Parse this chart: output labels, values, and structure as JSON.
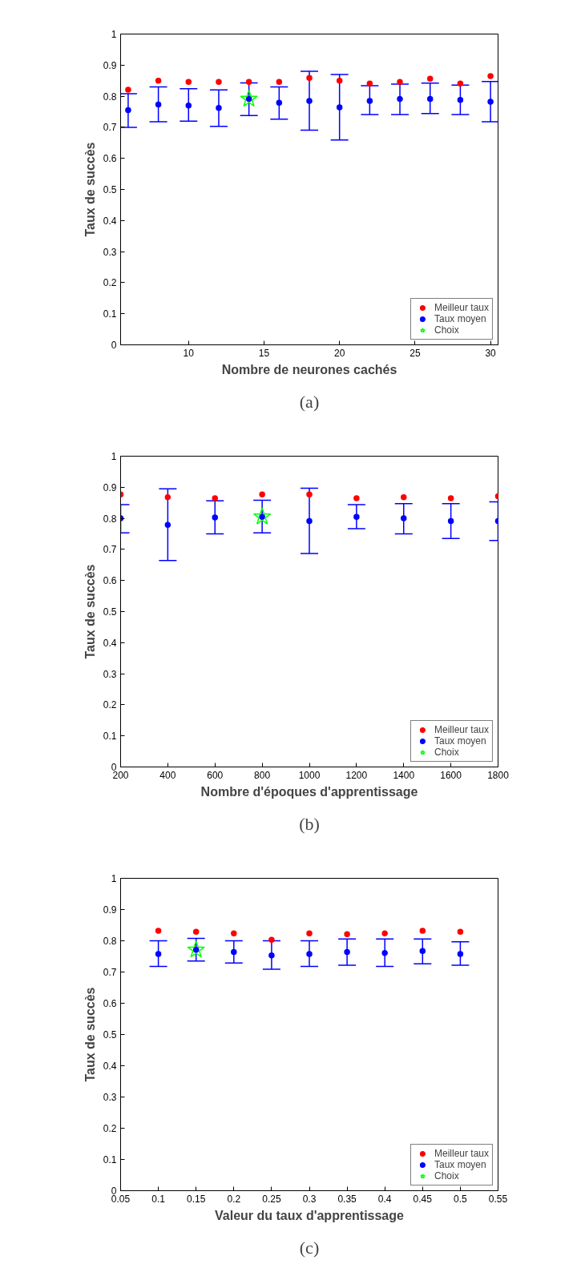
{
  "chart_data": [
    {
      "type": "scatter",
      "xlabel": "Nombre de neurones cachés",
      "ylabel": "Taux de succès",
      "annotations": [
        "(a)"
      ],
      "xlim": [
        5.5,
        30.5
      ],
      "xticks": [
        10,
        15,
        20,
        25,
        30
      ],
      "ylim": [
        0,
        1
      ],
      "yticks": [
        0,
        0.1,
        0.2,
        0.3,
        0.4,
        0.5,
        0.6,
        0.7,
        0.8,
        0.9,
        1
      ],
      "legend": "bottom right",
      "grid": false,
      "series": [
        {
          "name": "Meilleur taux",
          "color": "#ff0000",
          "marker": "circle",
          "x": [
            6,
            8,
            10,
            12,
            14,
            16,
            18,
            20,
            22,
            24,
            26,
            28,
            30
          ],
          "values": [
            0.821,
            0.85,
            0.846,
            0.846,
            0.846,
            0.846,
            0.859,
            0.85,
            0.841,
            0.846,
            0.856,
            0.841,
            0.865
          ]
        },
        {
          "name": "Taux moyen",
          "color": "#0000ff",
          "marker": "circle",
          "x": [
            6,
            8,
            10,
            12,
            14,
            16,
            18,
            20,
            22,
            24,
            26,
            28,
            30
          ],
          "values": [
            0.755,
            0.773,
            0.77,
            0.762,
            0.791,
            0.779,
            0.785,
            0.764,
            0.785,
            0.791,
            0.791,
            0.788,
            0.782
          ],
          "errors": [
            [
              0.7,
              0.808
            ],
            [
              0.718,
              0.83
            ],
            [
              0.72,
              0.824
            ],
            [
              0.703,
              0.82
            ],
            [
              0.738,
              0.843
            ],
            [
              0.726,
              0.83
            ],
            [
              0.691,
              0.88
            ],
            [
              0.659,
              0.87
            ],
            [
              0.741,
              0.834
            ],
            [
              0.741,
              0.839
            ],
            [
              0.744,
              0.842
            ],
            [
              0.741,
              0.836
            ],
            [
              0.718,
              0.847
            ]
          ]
        },
        {
          "name": "Choix",
          "color": "#00ff00",
          "marker": "star",
          "x": [
            14
          ],
          "values": [
            0.791
          ]
        }
      ]
    },
    {
      "type": "scatter",
      "xlabel": "Nombre d'époques d'apprentissage",
      "ylabel": "Taux de succès",
      "annotations": [
        "(b)"
      ],
      "xlim": [
        200,
        1800
      ],
      "xticks": [
        200,
        400,
        600,
        800,
        1000,
        1200,
        1400,
        1600,
        1800
      ],
      "ylim": [
        0,
        1
      ],
      "yticks": [
        0,
        0.1,
        0.2,
        0.3,
        0.4,
        0.5,
        0.6,
        0.7,
        0.8,
        0.9,
        1
      ],
      "legend": "bottom right",
      "grid": false,
      "series": [
        {
          "name": "Meilleur taux",
          "color": "#ff0000",
          "marker": "circle",
          "x": [
            200,
            400,
            600,
            800,
            1000,
            1200,
            1400,
            1600,
            1800
          ],
          "values": [
            0.877,
            0.868,
            0.865,
            0.877,
            0.877,
            0.865,
            0.868,
            0.865,
            0.871
          ]
        },
        {
          "name": "Taux moyen",
          "color": "#0000ff",
          "marker": "circle",
          "x": [
            200,
            400,
            600,
            800,
            1000,
            1200,
            1400,
            1600,
            1800
          ],
          "values": [
            0.8,
            0.779,
            0.803,
            0.805,
            0.791,
            0.805,
            0.8,
            0.791,
            0.791
          ],
          "errors": [
            [
              0.753,
              0.844
            ],
            [
              0.664,
              0.895
            ],
            [
              0.75,
              0.856
            ],
            [
              0.753,
              0.858
            ],
            [
              0.687,
              0.897
            ],
            [
              0.767,
              0.844
            ],
            [
              0.75,
              0.847
            ],
            [
              0.735,
              0.847
            ],
            [
              0.729,
              0.853
            ]
          ]
        },
        {
          "name": "Choix",
          "color": "#00ff00",
          "marker": "star",
          "x": [
            800
          ],
          "values": [
            0.805
          ]
        }
      ]
    },
    {
      "type": "scatter",
      "xlabel": "Valeur du taux d'apprentissage",
      "ylabel": "Taux de succès",
      "annotations": [
        "(c)"
      ],
      "xlim": [
        0.05,
        0.55
      ],
      "xticks": [
        0.05,
        0.1,
        0.15,
        0.2,
        0.25,
        0.3,
        0.35,
        0.4,
        0.45,
        0.5,
        0.55
      ],
      "ylim": [
        0,
        1
      ],
      "yticks": [
        0,
        0.1,
        0.2,
        0.3,
        0.4,
        0.5,
        0.6,
        0.7,
        0.8,
        0.9,
        1
      ],
      "legend": "bottom right",
      "grid": false,
      "series": [
        {
          "name": "Meilleur taux",
          "color": "#ff0000",
          "marker": "circle",
          "x": [
            0.1,
            0.15,
            0.2,
            0.25,
            0.3,
            0.35,
            0.4,
            0.45,
            0.5
          ],
          "values": [
            0.832,
            0.829,
            0.824,
            0.803,
            0.824,
            0.821,
            0.824,
            0.832,
            0.829
          ]
        },
        {
          "name": "Taux moyen",
          "color": "#0000ff",
          "marker": "circle",
          "x": [
            0.1,
            0.15,
            0.2,
            0.25,
            0.3,
            0.35,
            0.4,
            0.45,
            0.5
          ],
          "values": [
            0.758,
            0.771,
            0.764,
            0.753,
            0.758,
            0.764,
            0.761,
            0.767,
            0.758
          ],
          "errors": [
            [
              0.718,
              0.8
            ],
            [
              0.735,
              0.808
            ],
            [
              0.729,
              0.8
            ],
            [
              0.709,
              0.8
            ],
            [
              0.718,
              0.8
            ],
            [
              0.722,
              0.806
            ],
            [
              0.718,
              0.806
            ],
            [
              0.726,
              0.806
            ],
            [
              0.722,
              0.797
            ]
          ]
        },
        {
          "name": "Choix",
          "color": "#00ff00",
          "marker": "star",
          "x": [
            0.15
          ],
          "values": [
            0.771
          ]
        }
      ]
    }
  ]
}
